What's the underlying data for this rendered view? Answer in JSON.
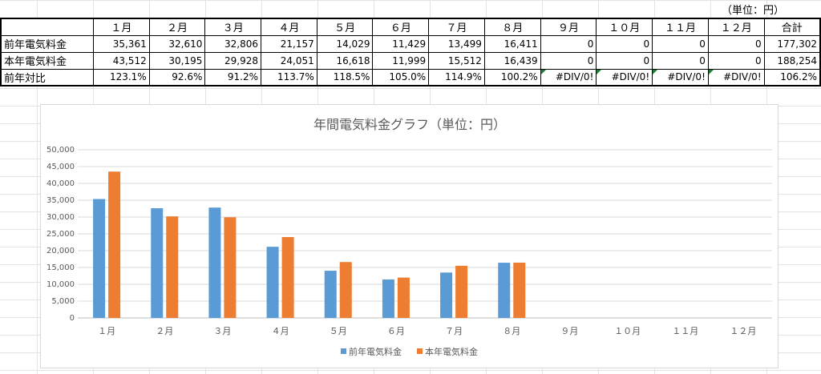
{
  "sheet": {
    "unit_note": "（単位：円）",
    "table": {
      "headers": [
        "",
        "１月",
        "２月",
        "３月",
        "４月",
        "５月",
        "６月",
        "７月",
        "８月",
        "９月",
        "１０月",
        "１１月",
        "１２月",
        "合計"
      ],
      "rows": [
        {
          "label": "前年電気料金",
          "cells": [
            "35,361",
            "32,610",
            "32,806",
            "21,157",
            "14,029",
            "11,429",
            "13,499",
            "16,411",
            "0",
            "0",
            "0",
            "0",
            "177,302"
          ]
        },
        {
          "label": "本年電気料金",
          "cells": [
            "43,512",
            "30,195",
            "29,928",
            "24,051",
            "16,618",
            "11,999",
            "15,512",
            "16,439",
            "0",
            "0",
            "0",
            "0",
            "188,254"
          ]
        },
        {
          "label": "前年対比",
          "cells": [
            "123.1%",
            "92.6%",
            "91.2%",
            "113.7%",
            "118.5%",
            "105.0%",
            "114.9%",
            "100.2%",
            "#DIV/0!",
            "#DIV/0!",
            "#DIV/0!",
            "#DIV/0!",
            "106.2%"
          ]
        }
      ]
    }
  },
  "chart_data": {
    "type": "bar",
    "title": "年間電気料金グラフ（単位：円）",
    "categories": [
      "１月",
      "２月",
      "３月",
      "４月",
      "５月",
      "６月",
      "７月",
      "８月",
      "９月",
      "１０月",
      "１１月",
      "１２月"
    ],
    "series": [
      {
        "name": "前年電気料金",
        "color": "#5b9bd5",
        "values": [
          35361,
          32610,
          32806,
          21157,
          14029,
          11429,
          13499,
          16411,
          null,
          null,
          null,
          null
        ]
      },
      {
        "name": "本年電気料金",
        "color": "#ed7d31",
        "values": [
          43512,
          30195,
          29928,
          24051,
          16618,
          11999,
          15512,
          16439,
          null,
          null,
          null,
          null
        ]
      }
    ],
    "ylim": [
      0,
      50000
    ],
    "yticks": [
      "0",
      "5,000",
      "10,000",
      "15,000",
      "20,000",
      "25,000",
      "30,000",
      "35,000",
      "40,000",
      "45,000",
      "50,000"
    ],
    "grid": true,
    "legend": "bottom"
  }
}
